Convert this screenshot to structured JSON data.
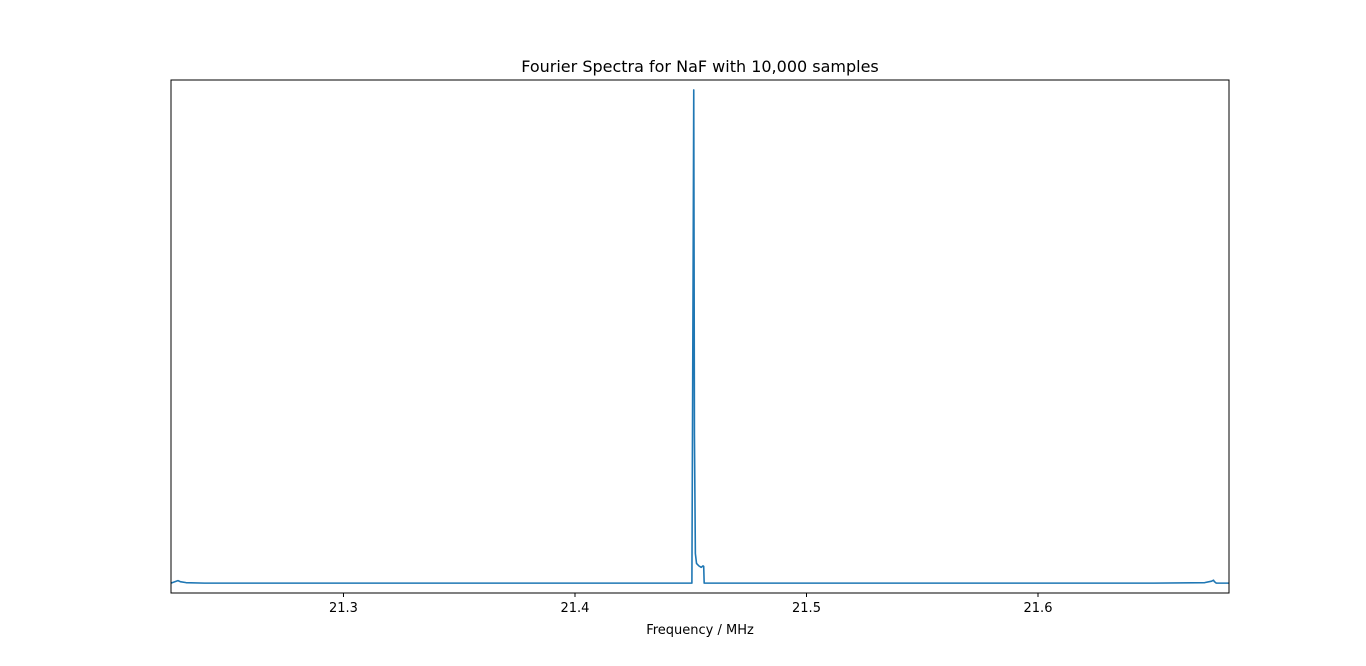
{
  "chart_data": {
    "type": "line",
    "title": "Fourier Spectra for NaF with 10,000 samples",
    "xlabel": "Frequency / MHz",
    "ylabel": "",
    "xlim": [
      21.2255,
      21.6825
    ],
    "ylim": [
      -0.02,
      1.02
    ],
    "x_ticks": [
      21.3,
      21.4,
      21.5,
      21.6
    ],
    "x_tick_labels": [
      "21.3",
      "21.4",
      "21.5",
      "21.6"
    ],
    "y_ticks_visible": false,
    "grid": false,
    "legend": "none",
    "series": [
      {
        "color": "#1f77b4",
        "x": [
          21.2255,
          21.2285,
          21.2295,
          21.232,
          21.24,
          21.26,
          21.3,
          21.35,
          21.4,
          21.43,
          21.445,
          21.449,
          21.4505,
          21.451,
          21.4513,
          21.4516,
          21.452,
          21.4525,
          21.4535,
          21.4545,
          21.4553,
          21.4556,
          21.4558,
          21.4562,
          21.457,
          21.47,
          21.5,
          21.55,
          21.6,
          21.65,
          21.672,
          21.675,
          21.6758,
          21.6762,
          21.677,
          21.6825
        ],
        "y": [
          0.0,
          0.005,
          0.003,
          0.001,
          0.0,
          0.0,
          0.0,
          0.0,
          0.0,
          0.0,
          0.0,
          0.0,
          0.0,
          0.6,
          1.0,
          0.3,
          0.06,
          0.04,
          0.035,
          0.032,
          0.035,
          0.034,
          0.0,
          0.0,
          0.0,
          0.0,
          0.0,
          0.0,
          0.0,
          0.0,
          0.001,
          0.004,
          0.006,
          0.003,
          0.0,
          0.0
        ]
      }
    ]
  }
}
